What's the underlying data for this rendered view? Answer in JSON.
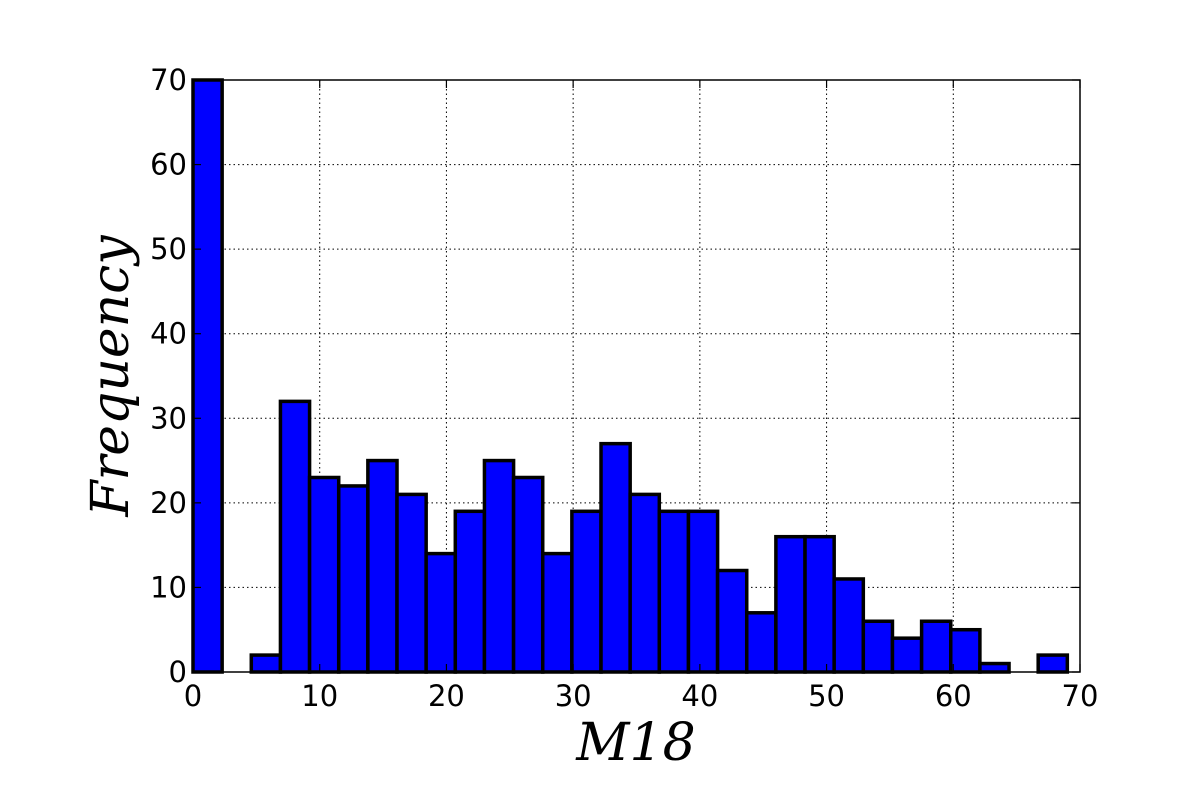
{
  "chart_data": {
    "type": "bar",
    "title": "",
    "xlabel": "M18",
    "ylabel": "Frequency",
    "xlim": [
      0,
      70
    ],
    "ylim": [
      0,
      70
    ],
    "bin_width": 2.3,
    "bins": [
      {
        "start": 0.0,
        "value": 70
      },
      {
        "start": 4.6,
        "value": 2
      },
      {
        "start": 6.9,
        "value": 32
      },
      {
        "start": 9.2,
        "value": 23
      },
      {
        "start": 11.5,
        "value": 22
      },
      {
        "start": 13.8,
        "value": 25
      },
      {
        "start": 16.1,
        "value": 21
      },
      {
        "start": 18.4,
        "value": 14
      },
      {
        "start": 20.7,
        "value": 19
      },
      {
        "start": 23.0,
        "value": 25
      },
      {
        "start": 25.3,
        "value": 23
      },
      {
        "start": 27.6,
        "value": 14
      },
      {
        "start": 29.9,
        "value": 19
      },
      {
        "start": 32.2,
        "value": 27
      },
      {
        "start": 34.5,
        "value": 21
      },
      {
        "start": 36.8,
        "value": 19
      },
      {
        "start": 39.1,
        "value": 19
      },
      {
        "start": 41.4,
        "value": 12
      },
      {
        "start": 43.7,
        "value": 7
      },
      {
        "start": 46.0,
        "value": 16
      },
      {
        "start": 48.3,
        "value": 16
      },
      {
        "start": 50.6,
        "value": 11
      },
      {
        "start": 52.9,
        "value": 6
      },
      {
        "start": 55.2,
        "value": 4
      },
      {
        "start": 57.5,
        "value": 6
      },
      {
        "start": 59.8,
        "value": 5
      },
      {
        "start": 62.1,
        "value": 1
      },
      {
        "start": 66.7,
        "value": 2
      }
    ],
    "xticks": [
      0,
      10,
      20,
      30,
      40,
      50,
      60,
      70
    ],
    "yticks": [
      0,
      10,
      20,
      30,
      40,
      50,
      60,
      70
    ],
    "grid": true,
    "bar_color": "#0000ff",
    "edge_color": "#000000"
  }
}
